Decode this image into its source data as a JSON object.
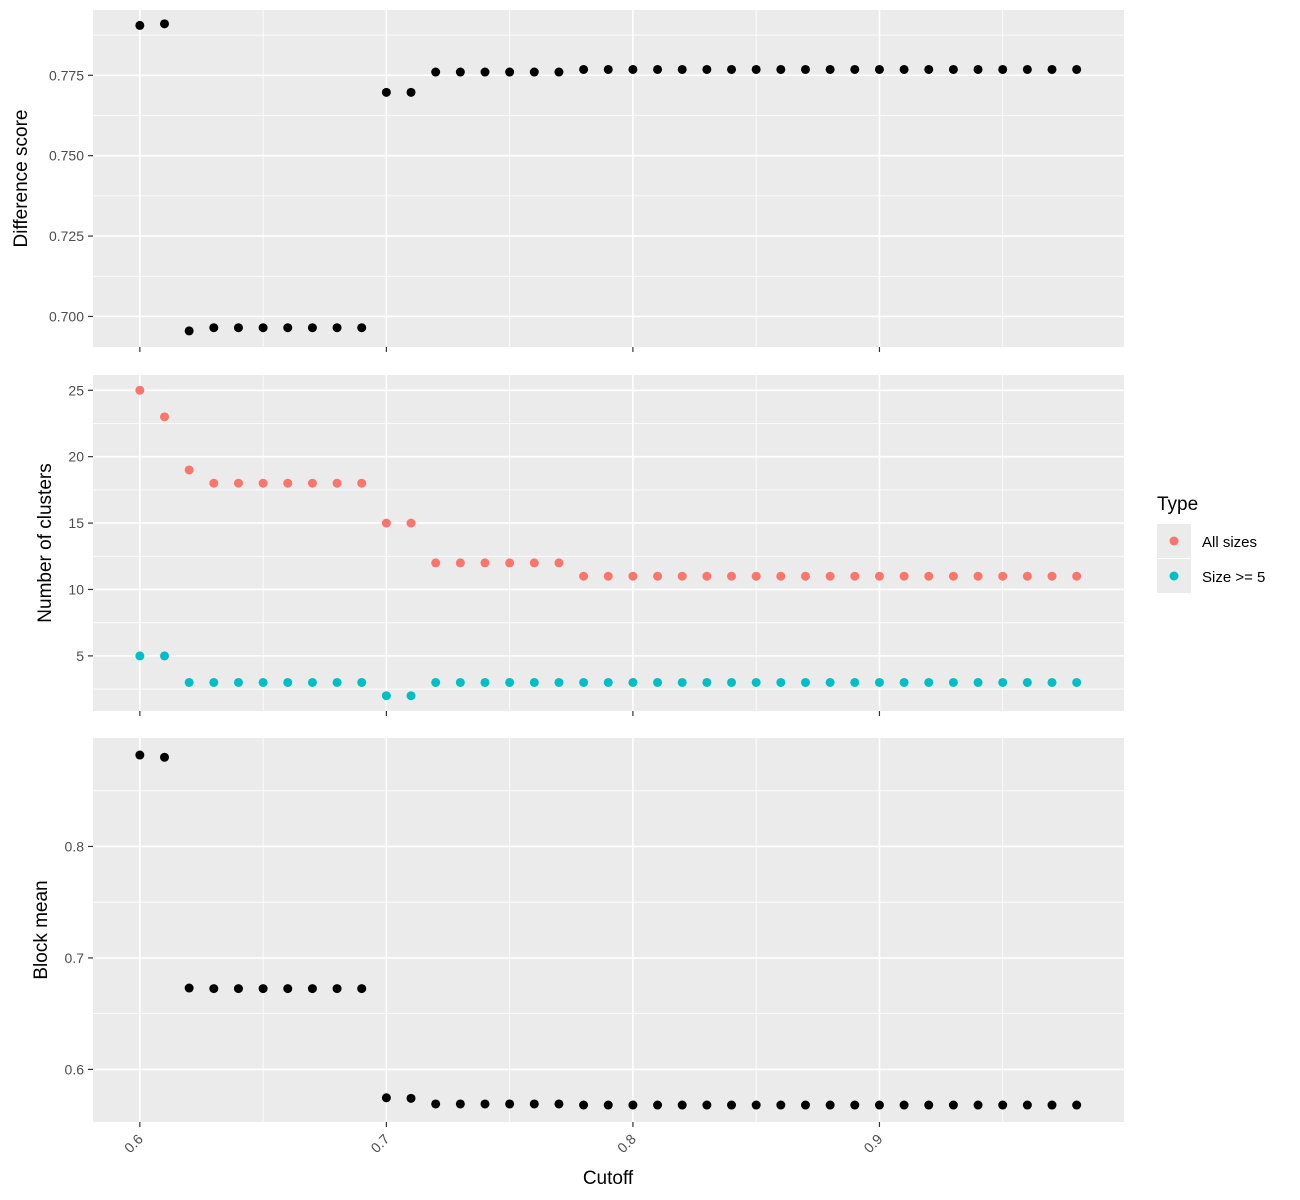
{
  "chart_data": [
    {
      "type": "scatter",
      "ylabel": "Difference score",
      "xlim": [
        0.581,
        0.9992
      ],
      "ylim": [
        0.6905,
        0.7953
      ],
      "yticks": [
        0.7,
        0.725,
        0.75,
        0.775
      ],
      "ytick_labels": [
        "0.700",
        "0.725",
        "0.750",
        "0.775"
      ],
      "series": [
        {
          "color": "#000000",
          "x": [
            0.6,
            0.61,
            0.62,
            0.63,
            0.64,
            0.65,
            0.66,
            0.67,
            0.68,
            0.69,
            0.7,
            0.71,
            0.72,
            0.73,
            0.74,
            0.75,
            0.76,
            0.77,
            0.78,
            0.79,
            0.8,
            0.81,
            0.82,
            0.83,
            0.84,
            0.85,
            0.86,
            0.87,
            0.88,
            0.89,
            0.9,
            0.91,
            0.92,
            0.93,
            0.94,
            0.95,
            0.96,
            0.97,
            0.98
          ],
          "y": [
            0.7905,
            0.791,
            0.6955,
            0.6965,
            0.6965,
            0.6965,
            0.6965,
            0.6965,
            0.6965,
            0.6965,
            0.7697,
            0.7697,
            0.776,
            0.776,
            0.776,
            0.776,
            0.776,
            0.776,
            0.7768,
            0.7768,
            0.7768,
            0.7768,
            0.7768,
            0.7768,
            0.7768,
            0.7768,
            0.7768,
            0.7768,
            0.7768,
            0.7768,
            0.7768,
            0.7768,
            0.7768,
            0.7768,
            0.7768,
            0.7768,
            0.7768,
            0.7768,
            0.7768
          ]
        }
      ]
    },
    {
      "type": "scatter",
      "ylabel": "Number of clusters",
      "xlim": [
        0.581,
        0.9992
      ],
      "ylim": [
        0.85,
        26.15
      ],
      "yticks": [
        5,
        10,
        15,
        20,
        25
      ],
      "ytick_labels": [
        "5",
        "10",
        "15",
        "20",
        "25"
      ],
      "series": [
        {
          "name": "All sizes",
          "color": "#f8766d",
          "x": [
            0.6,
            0.61,
            0.62,
            0.63,
            0.64,
            0.65,
            0.66,
            0.67,
            0.68,
            0.69,
            0.7,
            0.71,
            0.72,
            0.73,
            0.74,
            0.75,
            0.76,
            0.77,
            0.78,
            0.79,
            0.8,
            0.81,
            0.82,
            0.83,
            0.84,
            0.85,
            0.86,
            0.87,
            0.88,
            0.89,
            0.9,
            0.91,
            0.92,
            0.93,
            0.94,
            0.95,
            0.96,
            0.97,
            0.98
          ],
          "y": [
            25,
            23,
            19,
            18,
            18,
            18,
            18,
            18,
            18,
            18,
            15,
            15,
            12,
            12,
            12,
            12,
            12,
            12,
            11,
            11,
            11,
            11,
            11,
            11,
            11,
            11,
            11,
            11,
            11,
            11,
            11,
            11,
            11,
            11,
            11,
            11,
            11,
            11,
            11
          ]
        },
        {
          "name": "Size >= 5",
          "color": "#00bfc4",
          "x": [
            0.6,
            0.61,
            0.62,
            0.63,
            0.64,
            0.65,
            0.66,
            0.67,
            0.68,
            0.69,
            0.7,
            0.71,
            0.72,
            0.73,
            0.74,
            0.75,
            0.76,
            0.77,
            0.78,
            0.79,
            0.8,
            0.81,
            0.82,
            0.83,
            0.84,
            0.85,
            0.86,
            0.87,
            0.88,
            0.89,
            0.9,
            0.91,
            0.92,
            0.93,
            0.94,
            0.95,
            0.96,
            0.97,
            0.98
          ],
          "y": [
            5,
            5,
            3,
            3,
            3,
            3,
            3,
            3,
            3,
            3,
            2,
            2,
            3,
            3,
            3,
            3,
            3,
            3,
            3,
            3,
            3,
            3,
            3,
            3,
            3,
            3,
            3,
            3,
            3,
            3,
            3,
            3,
            3,
            3,
            3,
            3,
            3,
            3,
            3
          ]
        }
      ]
    },
    {
      "type": "scatter",
      "ylabel": "Block mean",
      "xlabel": "Cutoff",
      "xlim": [
        0.581,
        0.9992
      ],
      "ylim": [
        0.5528,
        0.8973
      ],
      "yticks": [
        0.6,
        0.7,
        0.8
      ],
      "ytick_labels": [
        "0.6",
        "0.7",
        "0.8"
      ],
      "xticks": [
        0.6,
        0.7,
        0.8,
        0.9
      ],
      "xtick_labels": [
        "0.6",
        "0.7",
        "0.8",
        "0.9"
      ],
      "series": [
        {
          "color": "#000000",
          "x": [
            0.6,
            0.61,
            0.62,
            0.63,
            0.64,
            0.65,
            0.66,
            0.67,
            0.68,
            0.69,
            0.7,
            0.71,
            0.72,
            0.73,
            0.74,
            0.75,
            0.76,
            0.77,
            0.78,
            0.79,
            0.8,
            0.81,
            0.82,
            0.83,
            0.84,
            0.85,
            0.86,
            0.87,
            0.88,
            0.89,
            0.9,
            0.91,
            0.92,
            0.93,
            0.94,
            0.95,
            0.96,
            0.97,
            0.98
          ],
          "y": [
            0.882,
            0.88,
            0.673,
            0.6725,
            0.6725,
            0.6725,
            0.6725,
            0.6725,
            0.6725,
            0.6725,
            0.5745,
            0.574,
            0.569,
            0.569,
            0.569,
            0.569,
            0.569,
            0.569,
            0.568,
            0.568,
            0.568,
            0.568,
            0.568,
            0.568,
            0.568,
            0.568,
            0.568,
            0.568,
            0.568,
            0.568,
            0.568,
            0.568,
            0.568,
            0.568,
            0.568,
            0.568,
            0.568,
            0.568,
            0.568
          ]
        }
      ]
    }
  ],
  "legend": {
    "title": "Type",
    "placement": "right",
    "items": [
      {
        "label": "All sizes",
        "color": "#f8766d"
      },
      {
        "label": "Size >= 5",
        "color": "#00bfc4"
      }
    ]
  }
}
